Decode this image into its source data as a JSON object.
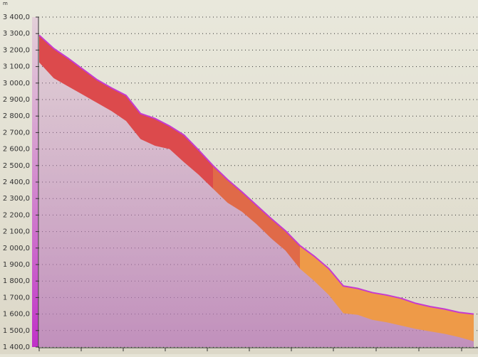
{
  "unit": "m",
  "chart_data": {
    "type": "area-profile",
    "ylim": [
      1400,
      3400
    ],
    "yticks": [
      {
        "value": 3400,
        "label": "3 400,0"
      },
      {
        "value": 3300,
        "label": "3 300,0"
      },
      {
        "value": 3200,
        "label": "3 200,0"
      },
      {
        "value": 3100,
        "label": "3 100,0"
      },
      {
        "value": 3000,
        "label": "3 000,0"
      },
      {
        "value": 2900,
        "label": "2 900,0"
      },
      {
        "value": 2800,
        "label": "2 800,0"
      },
      {
        "value": 2700,
        "label": "2 700,0"
      },
      {
        "value": 2600,
        "label": "2 600,0"
      },
      {
        "value": 2500,
        "label": "2 500,0"
      },
      {
        "value": 2400,
        "label": "2 400,0"
      },
      {
        "value": 2300,
        "label": "2 300,0"
      },
      {
        "value": 2200,
        "label": "2 200,0"
      },
      {
        "value": 2100,
        "label": "2 100,0"
      },
      {
        "value": 2000,
        "label": "2 000,0"
      },
      {
        "value": 1900,
        "label": "1 900,0"
      },
      {
        "value": 1800,
        "label": "1 800,0"
      },
      {
        "value": 1700,
        "label": "1 700,0"
      },
      {
        "value": 1600,
        "label": "1 600,0"
      },
      {
        "value": 1500,
        "label": "1 500,0"
      },
      {
        "value": 1400,
        "label": "1 400,0"
      }
    ],
    "grid": true,
    "series": [
      {
        "color": "#c63ad0",
        "values": [
          3290,
          3210,
          3150,
          3085,
          3020,
          2970,
          2925,
          2815,
          2785,
          2740,
          2685,
          2595,
          2500,
          2415,
          2340,
          2260,
          2180,
          2105,
          2015,
          1950,
          1875,
          1770,
          1755,
          1730,
          1715,
          1695,
          1665,
          1645,
          1630,
          1610,
          1600
        ]
      },
      {
        "color": "#dc4a4c",
        "values": [
          3290,
          3210,
          3150,
          3085,
          3020,
          2970,
          2925,
          2815,
          2785,
          2740,
          2685,
          2595,
          2500,
          null,
          null,
          null,
          null,
          null,
          null,
          null,
          null,
          null,
          null,
          null,
          null,
          null,
          null,
          null,
          null,
          null,
          null
        ],
        "lower": [
          3125,
          3030,
          2980,
          2930,
          2880,
          2830,
          2770,
          2660,
          2620,
          2600,
          2520,
          2445,
          2360,
          null,
          null,
          null,
          null,
          null,
          null,
          null,
          null,
          null,
          null,
          null,
          null,
          null,
          null,
          null,
          null,
          null,
          null
        ]
      },
      {
        "color": "#e06a48",
        "values": [
          null,
          null,
          null,
          null,
          null,
          null,
          null,
          null,
          null,
          null,
          null,
          null,
          2500,
          2415,
          2340,
          2260,
          2180,
          2105,
          2015,
          null,
          null,
          null,
          null,
          null,
          null,
          null,
          null,
          null,
          null,
          null,
          null
        ],
        "lower": [
          null,
          null,
          null,
          null,
          null,
          null,
          null,
          null,
          null,
          null,
          null,
          null,
          2360,
          2275,
          2220,
          2145,
          2060,
          1985,
          1875,
          null,
          null,
          null,
          null,
          null,
          null,
          null,
          null,
          null,
          null,
          null,
          null
        ]
      },
      {
        "color": "#ee9a48",
        "values": [
          null,
          null,
          null,
          null,
          null,
          null,
          null,
          null,
          null,
          null,
          null,
          null,
          null,
          null,
          null,
          null,
          null,
          null,
          2015,
          1950,
          1875,
          1770,
          1755,
          1730,
          1715,
          1695,
          1665,
          1645,
          1630,
          1610,
          1600
        ],
        "lower": [
          null,
          null,
          null,
          null,
          null,
          null,
          null,
          null,
          null,
          null,
          null,
          null,
          null,
          null,
          null,
          null,
          null,
          null,
          1875,
          1800,
          1715,
          1605,
          1595,
          1565,
          1550,
          1530,
          1510,
          1495,
          1480,
          1460,
          1435
        ]
      }
    ]
  }
}
